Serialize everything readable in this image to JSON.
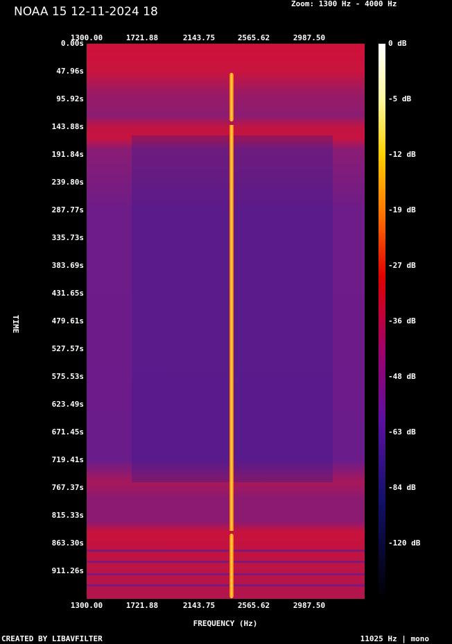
{
  "header": {
    "title": "NOAA 15 12-11-2024 18",
    "zoom": "Zoom: 1300 Hz - 4000 Hz"
  },
  "frequency_ticks": [
    "1300.00",
    "1721.88",
    "2143.75",
    "2565.62",
    "2987.50"
  ],
  "time_ticks": [
    "0.00s",
    "47.96s",
    "95.92s",
    "143.88s",
    "191.84s",
    "239.80s",
    "287.77s",
    "335.73s",
    "383.69s",
    "431.65s",
    "479.61s",
    "527.57s",
    "575.53s",
    "623.49s",
    "671.45s",
    "719.41s",
    "767.37s",
    "815.33s",
    "863.30s",
    "911.26s"
  ],
  "colorbar_ticks": [
    "0 dB",
    "-5 dB",
    "-12 dB",
    "-19 dB",
    "-27 dB",
    "-36 dB",
    "-48 dB",
    "-63 dB",
    "-84 dB",
    "-120 dB"
  ],
  "x_axis_label": "FREQUENCY (Hz)",
  "y_axis_label": "TIME",
  "footer": {
    "left": "CREATED BY LIBAVFILTER",
    "right": "11025 Hz | mono"
  }
}
